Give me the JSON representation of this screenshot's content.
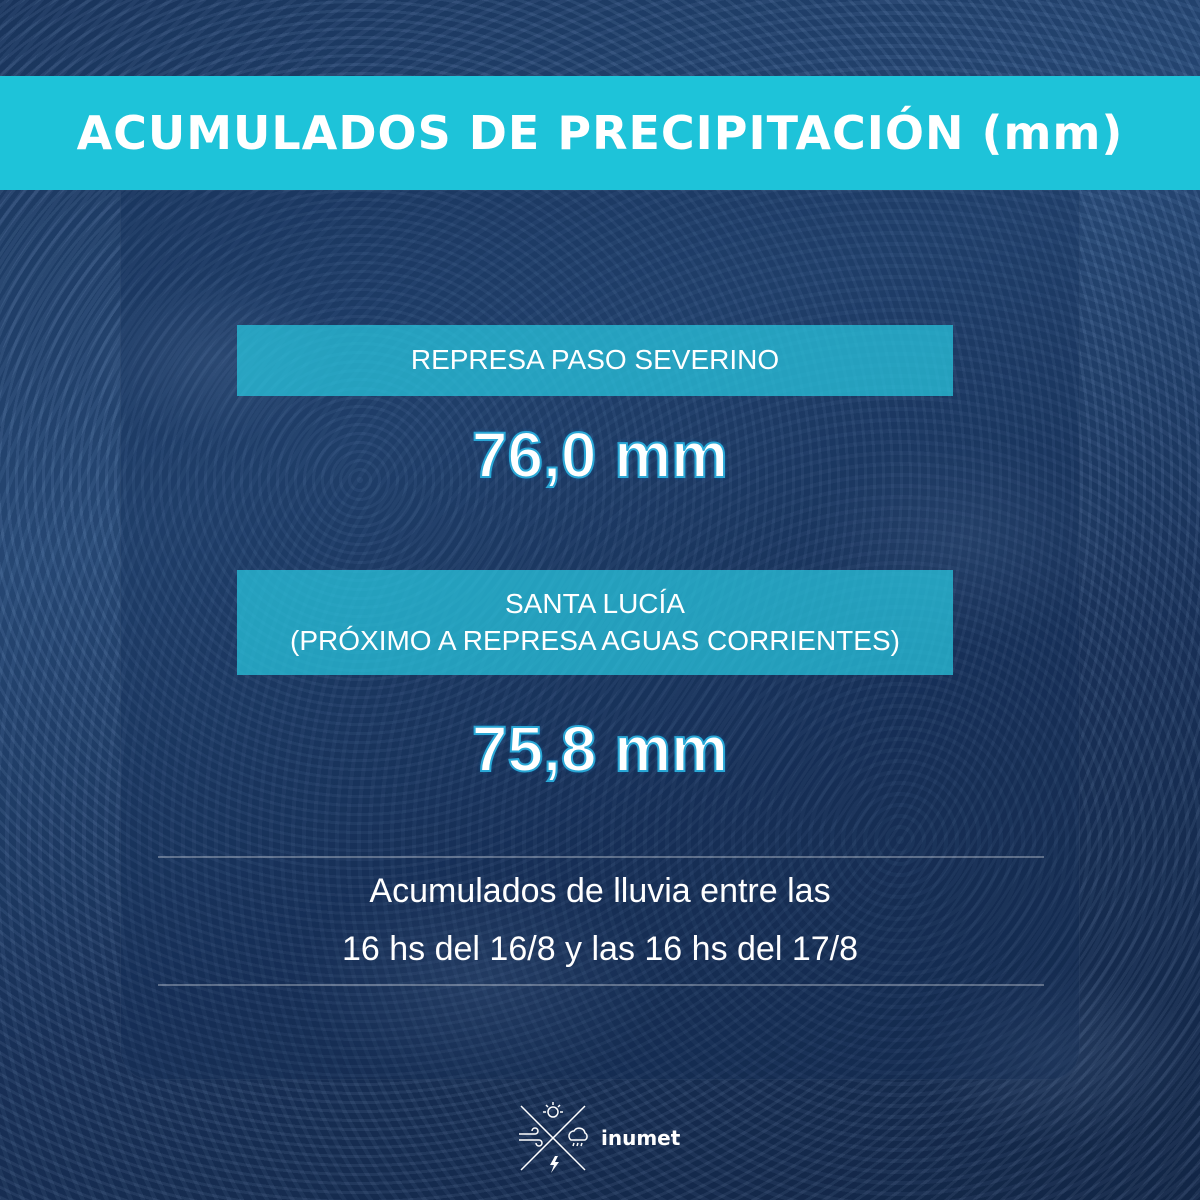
{
  "header": {
    "title": "ACUMULADOS DE PRECIPITACIÓN (mm)"
  },
  "stations": [
    {
      "name_line1": "REPRESA PASO SEVERINO",
      "value": "76,0 mm"
    },
    {
      "name_line1": "SANTA LUCÍA",
      "name_line2": "(PRÓXIMO A REPRESA AGUAS CORRIENTES)",
      "value": "75,8 mm"
    }
  ],
  "note": {
    "line1": "Acumulados de lluvia entre las",
    "line2": "16 hs del 16/8 y las 16 hs del 17/8"
  },
  "logo": {
    "text": "inumet",
    "icons": [
      "sun-icon",
      "wind-icon",
      "cloud-rain-icon",
      "lightning-icon"
    ]
  },
  "colors": {
    "accent": "#1ec3d9",
    "value_outline": "#2aa8d6"
  }
}
